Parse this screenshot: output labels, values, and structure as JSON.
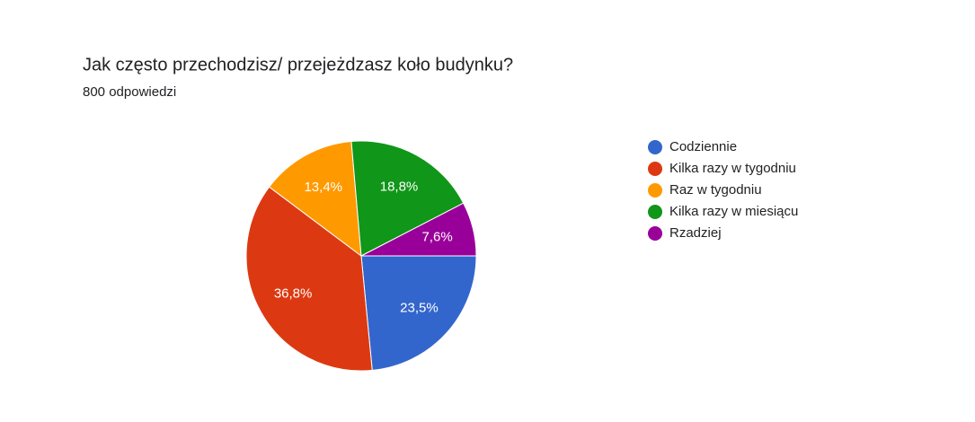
{
  "chart_data": {
    "type": "pie",
    "title": "Jak często przechodzisz/ przejeżdzasz koło budynku?",
    "subtitle": "800 odpowiedzi",
    "categories": [
      "Codziennie",
      "Kilka razy w tygodniu",
      "Raz w tygodniu",
      "Kilka razy w miesiącu",
      "Rzadziej"
    ],
    "values": [
      23.5,
      36.8,
      13.4,
      18.8,
      7.6
    ],
    "value_labels": [
      "23,5%",
      "36,8%",
      "13,4%",
      "18,8%",
      "7,6%"
    ],
    "colors": [
      "#3366cc",
      "#dc3912",
      "#ff9900",
      "#109618",
      "#990099"
    ],
    "legend": "right"
  }
}
